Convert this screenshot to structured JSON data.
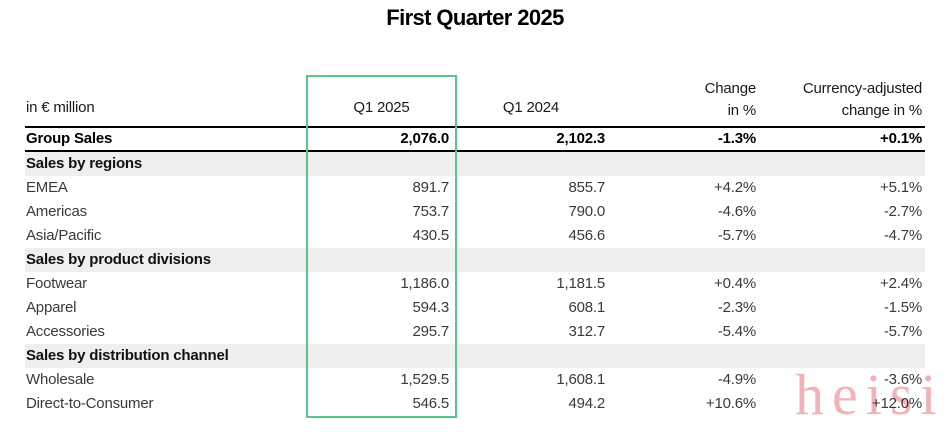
{
  "title": "First Quarter 2025",
  "watermark_text": "heisi",
  "colors": {
    "highlight_green": "#57c68e",
    "section_row_bg": "#efefef",
    "watermark_pink": "#f2b3b6"
  },
  "table": {
    "unit_label": "in € million",
    "headers": {
      "q1_2025": "Q1 2025",
      "q1_2024": "Q1 2024",
      "change_line1": "Change",
      "change_line2": "in %",
      "adjusted_line1": "Currency-adjusted",
      "adjusted_line2": "change in %"
    },
    "rows": [
      {
        "type": "total",
        "label": "Group Sales",
        "q1_2025": "2,076.0",
        "q1_2024": "2,102.3",
        "change_pct": "-1.3%",
        "adjusted_pct": "+0.1%"
      },
      {
        "type": "section",
        "label": "Sales by regions",
        "q1_2025": "",
        "q1_2024": "",
        "change_pct": "",
        "adjusted_pct": ""
      },
      {
        "type": "data",
        "label": "EMEA",
        "q1_2025": "891.7",
        "q1_2024": "855.7",
        "change_pct": "+4.2%",
        "adjusted_pct": "+5.1%"
      },
      {
        "type": "data",
        "label": "Americas",
        "q1_2025": "753.7",
        "q1_2024": "790.0",
        "change_pct": "-4.6%",
        "adjusted_pct": "-2.7%"
      },
      {
        "type": "data",
        "label": "Asia/Pacific",
        "q1_2025": "430.5",
        "q1_2024": "456.6",
        "change_pct": "-5.7%",
        "adjusted_pct": "-4.7%"
      },
      {
        "type": "section",
        "label": "Sales by product divisions",
        "q1_2025": "",
        "q1_2024": "",
        "change_pct": "",
        "adjusted_pct": ""
      },
      {
        "type": "data",
        "label": "Footwear",
        "q1_2025": "1,186.0",
        "q1_2024": "1,181.5",
        "change_pct": "+0.4%",
        "adjusted_pct": "+2.4%"
      },
      {
        "type": "data",
        "label": "Apparel",
        "q1_2025": "594.3",
        "q1_2024": "608.1",
        "change_pct": "-2.3%",
        "adjusted_pct": "-1.5%"
      },
      {
        "type": "data",
        "label": "Accessories",
        "q1_2025": "295.7",
        "q1_2024": "312.7",
        "change_pct": "-5.4%",
        "adjusted_pct": "-5.7%"
      },
      {
        "type": "section",
        "label": "Sales by distribution channel",
        "q1_2025": "",
        "q1_2024": "",
        "change_pct": "",
        "adjusted_pct": ""
      },
      {
        "type": "data",
        "label": "Wholesale",
        "q1_2025": "1,529.5",
        "q1_2024": "1,608.1",
        "change_pct": "-4.9%",
        "adjusted_pct": "-3.6%"
      },
      {
        "type": "data",
        "label": "Direct-to-Consumer",
        "q1_2025": "546.5",
        "q1_2024": "494.2",
        "change_pct": "+10.6%",
        "adjusted_pct": "+12.0%"
      }
    ]
  }
}
